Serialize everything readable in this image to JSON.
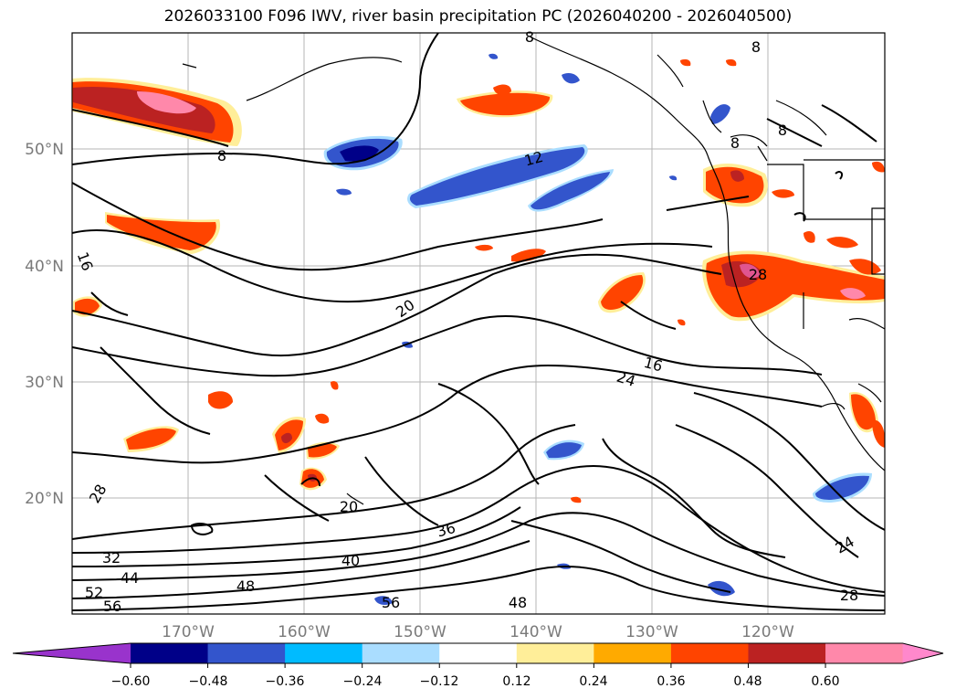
{
  "title": "2026033100 F096 IWV, river basin precipitation PC (2026040200 - 2026040500)",
  "map": {
    "lat_ticks": [
      "50°N",
      "40°N",
      "30°N",
      "20°N"
    ],
    "lon_ticks": [
      "170°W",
      "160°W",
      "150°W",
      "140°W",
      "130°W",
      "120°W"
    ],
    "contour_labels": [
      "8",
      "8",
      "8",
      "8",
      "8",
      "12",
      "16",
      "16",
      "20",
      "20",
      "24",
      "24",
      "28",
      "28",
      "28",
      "32",
      "36",
      "40",
      "44",
      "48",
      "48",
      "52",
      "56",
      "56"
    ]
  },
  "colorbar": {
    "colors": [
      "#9933cc",
      "#000088",
      "#3355cc",
      "#00bbff",
      "#aaddff",
      "#ffffff",
      "#ffee99",
      "#ffaa00",
      "#ff4400",
      "#bb2222",
      "#ff88aa",
      "#ff88cc"
    ],
    "tick_labels": [
      "−0.60",
      "−0.48",
      "−0.36",
      "−0.24",
      "−0.12",
      "0.12",
      "0.24",
      "0.36",
      "0.48",
      "0.60"
    ]
  }
}
